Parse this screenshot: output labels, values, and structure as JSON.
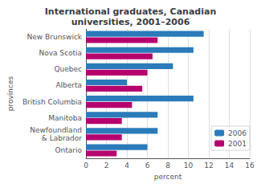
{
  "chart_data": {
    "type": "bar",
    "orientation": "horizontal",
    "title": "International graduates, Canadian\nuniversities, 2001–2006",
    "categories": [
      "New Brunswick",
      "Nova Scotia",
      "Quebec",
      "Alberta",
      "British Columbia",
      "Manitoba",
      "Newfoundland\n& Labrador",
      "Ontario"
    ],
    "series": [
      {
        "name": "2006",
        "color": "#2b7bba",
        "values": [
          11.5,
          10.5,
          8.5,
          4.0,
          10.5,
          7.0,
          7.0,
          6.0
        ]
      },
      {
        "name": "2001",
        "color": "#b5006e",
        "values": [
          7.0,
          6.5,
          6.0,
          5.5,
          4.5,
          3.5,
          3.5,
          3.0
        ]
      }
    ],
    "xlabel": "percent",
    "ylabel": "provinces",
    "xlim": [
      0,
      16
    ],
    "xticks": [
      0,
      2,
      4,
      6,
      8,
      10,
      12,
      14,
      16
    ],
    "grid": true,
    "legend": "lower right"
  }
}
